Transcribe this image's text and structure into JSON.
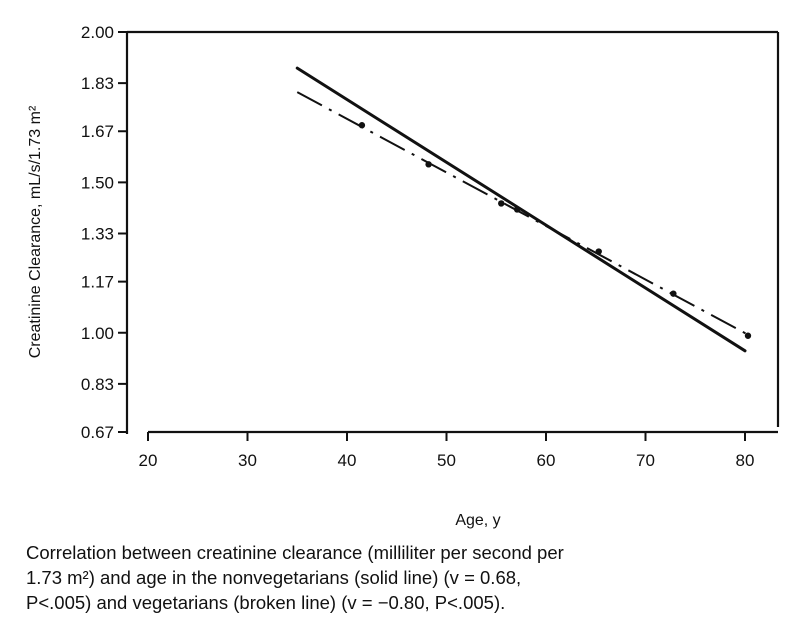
{
  "chart_data": {
    "type": "line",
    "xlabel": "Age, y",
    "ylabel": "Creatinine Clearance, mL/s/1.73 m²",
    "xlim": [
      20,
      80
    ],
    "ylim": [
      0.67,
      2.0
    ],
    "x_ticks": [
      "20",
      "30",
      "40",
      "50",
      "60",
      "70",
      "80"
    ],
    "y_ticks": [
      "2.00",
      "1.83",
      "1.67",
      "1.50",
      "1.33",
      "1.17",
      "1.00",
      "0.83",
      "0.67"
    ],
    "grid": false,
    "series": [
      {
        "style": "solid",
        "x": [
          35,
          80
        ],
        "y": [
          1.88,
          0.94
        ]
      },
      {
        "style": "broken",
        "x": [
          35,
          80.5
        ],
        "y": [
          1.8,
          0.99
        ],
        "markers": {
          "x": [
            41.5,
            48.2,
            55.5,
            57.1,
            65.3,
            72.8,
            80.3
          ],
          "y": [
            1.69,
            1.56,
            1.43,
            1.41,
            1.27,
            1.13,
            0.99
          ]
        }
      }
    ],
    "colors": {
      "line": "#111111",
      "background": "#ffffff"
    }
  },
  "caption": {
    "line1": "Correlation between creatinine clearance (milliliter per second per",
    "line2": "1.73 m²) and age in the nonvegetarians (solid line) (v = 0.68,",
    "line3": "P<.005) and vegetarians (broken line) (v = −0.80, P<.005)."
  }
}
